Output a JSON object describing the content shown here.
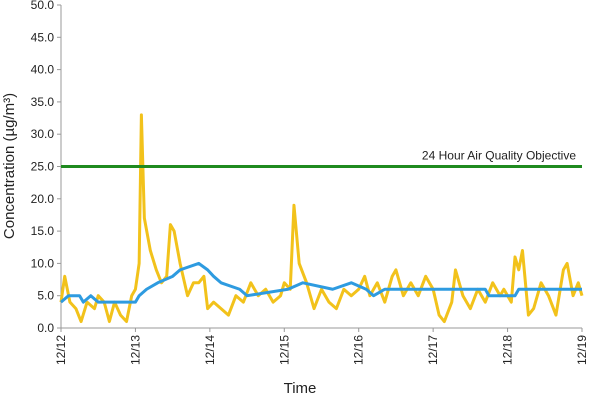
{
  "chart_data": {
    "type": "line",
    "x_label": "Time",
    "y_label": "Concentration (µg/m³)",
    "xlim": [
      0,
      7
    ],
    "ylim": [
      0,
      50
    ],
    "xticks": [
      {
        "value": 0,
        "label": "12/12"
      },
      {
        "value": 1,
        "label": "12/13"
      },
      {
        "value": 2,
        "label": "12/14"
      },
      {
        "value": 3,
        "label": "12/15"
      },
      {
        "value": 4,
        "label": "12/16"
      },
      {
        "value": 5,
        "label": "12/17"
      },
      {
        "value": 6,
        "label": "12/18"
      },
      {
        "value": 7,
        "label": "12/19"
      }
    ],
    "yticks": [
      {
        "value": 0,
        "label": "0.0"
      },
      {
        "value": 5,
        "label": "5.0"
      },
      {
        "value": 10,
        "label": "10.0"
      },
      {
        "value": 15,
        "label": "15.0"
      },
      {
        "value": 20,
        "label": "20.0"
      },
      {
        "value": 25,
        "label": "25.0"
      },
      {
        "value": 30,
        "label": "30.0"
      },
      {
        "value": 35,
        "label": "35.0"
      },
      {
        "value": 40,
        "label": "40.0"
      },
      {
        "value": 45,
        "label": "45.0"
      },
      {
        "value": 50,
        "label": "50.0"
      }
    ],
    "grid": false,
    "series": [
      {
        "color": "#f2c21b",
        "x": [
          0,
          0.05,
          0.12,
          0.2,
          0.27,
          0.35,
          0.45,
          0.5,
          0.58,
          0.65,
          0.72,
          0.8,
          0.88,
          0.95,
          1.0,
          1.05,
          1.08,
          1.12,
          1.2,
          1.28,
          1.35,
          1.42,
          1.47,
          1.52,
          1.6,
          1.7,
          1.78,
          1.85,
          1.92,
          1.97,
          2.05,
          2.15,
          2.25,
          2.35,
          2.45,
          2.55,
          2.65,
          2.75,
          2.85,
          2.95,
          3.0,
          3.08,
          3.13,
          3.2,
          3.3,
          3.4,
          3.5,
          3.6,
          3.7,
          3.8,
          3.9,
          4.0,
          4.08,
          4.15,
          4.25,
          4.35,
          4.45,
          4.5,
          4.6,
          4.7,
          4.8,
          4.9,
          5.0,
          5.08,
          5.15,
          5.25,
          5.3,
          5.4,
          5.5,
          5.6,
          5.7,
          5.8,
          5.9,
          5.95,
          6.05,
          6.1,
          6.15,
          6.2,
          6.28,
          6.35,
          6.45,
          6.55,
          6.65,
          6.75,
          6.8,
          6.88,
          6.95,
          7.0
        ],
        "values": [
          4,
          8,
          4,
          3,
          1,
          4,
          3,
          5,
          4,
          1,
          4,
          2,
          1,
          5,
          6,
          10,
          33,
          17,
          12,
          9,
          7,
          8,
          16,
          15,
          10,
          5,
          7,
          7,
          8,
          3,
          4,
          3,
          2,
          5,
          4,
          7,
          5,
          6,
          4,
          5,
          7,
          6,
          19,
          10,
          7,
          3,
          6,
          4,
          3,
          6,
          5,
          6,
          8,
          5,
          7,
          4,
          8,
          9,
          5,
          7,
          5,
          8,
          6,
          2,
          1,
          4,
          9,
          5,
          3,
          6,
          4,
          7,
          5,
          6,
          4,
          11,
          9,
          12,
          2,
          3,
          7,
          5,
          2,
          9,
          10,
          5,
          7,
          5
        ]
      },
      {
        "color": "#2e9be0",
        "x": [
          0,
          0.1,
          0.25,
          0.3,
          0.4,
          0.5,
          1.0,
          1.05,
          1.15,
          1.3,
          1.5,
          1.6,
          1.85,
          1.97,
          2.05,
          2.15,
          2.4,
          2.5,
          3.05,
          3.25,
          3.65,
          3.9,
          4.1,
          4.2,
          4.35,
          5.7,
          5.75,
          6.1,
          6.15,
          7.0
        ],
        "values": [
          4,
          5,
          5,
          4,
          5,
          4,
          4,
          5,
          6,
          7,
          8,
          9,
          10,
          9,
          8,
          7,
          6,
          5,
          6,
          7,
          6,
          7,
          6,
          5,
          6,
          6,
          5,
          5,
          6,
          6
        ]
      },
      {
        "name": "24 Hour Air Quality Objective",
        "color": "#1f8a1f",
        "x": [
          0,
          7
        ],
        "values": [
          25,
          25
        ]
      }
    ]
  }
}
